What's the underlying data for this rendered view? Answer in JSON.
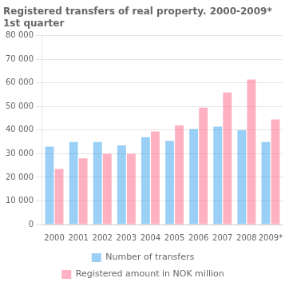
{
  "chart_data": {
    "type": "bar",
    "title": "Registered transfers of real property. 2000-2009*",
    "subtitle": "1st quarter",
    "categories": [
      "2000",
      "2001",
      "2002",
      "2003",
      "2004",
      "2005",
      "2006",
      "2007",
      "2008",
      "2009*"
    ],
    "series": [
      {
        "name": "Number of transfers",
        "values": [
          33000,
          35000,
          35000,
          33500,
          37000,
          35500,
          40500,
          41500,
          40000,
          35000
        ]
      },
      {
        "name": "Registered amount in NOK million",
        "values": [
          23500,
          28000,
          30000,
          30000,
          39500,
          42000,
          49500,
          56000,
          61500,
          44500
        ]
      }
    ],
    "ylim": [
      0,
      80000
    ],
    "yticks": [
      0,
      {
        "value": 10000,
        "label": "10 000"
      },
      {
        "value": 20000,
        "label": "20 000"
      },
      {
        "value": 30000,
        "label": "30 000"
      },
      {
        "value": 40000,
        "label": "40 000"
      },
      {
        "value": 50000,
        "label": "50 000"
      },
      {
        "value": 60000,
        "label": "60 000"
      },
      {
        "value": 70000,
        "label": "70 000"
      },
      {
        "value": 80000,
        "label": "80 000"
      }
    ],
    "grid": true,
    "legend": "bottom"
  }
}
